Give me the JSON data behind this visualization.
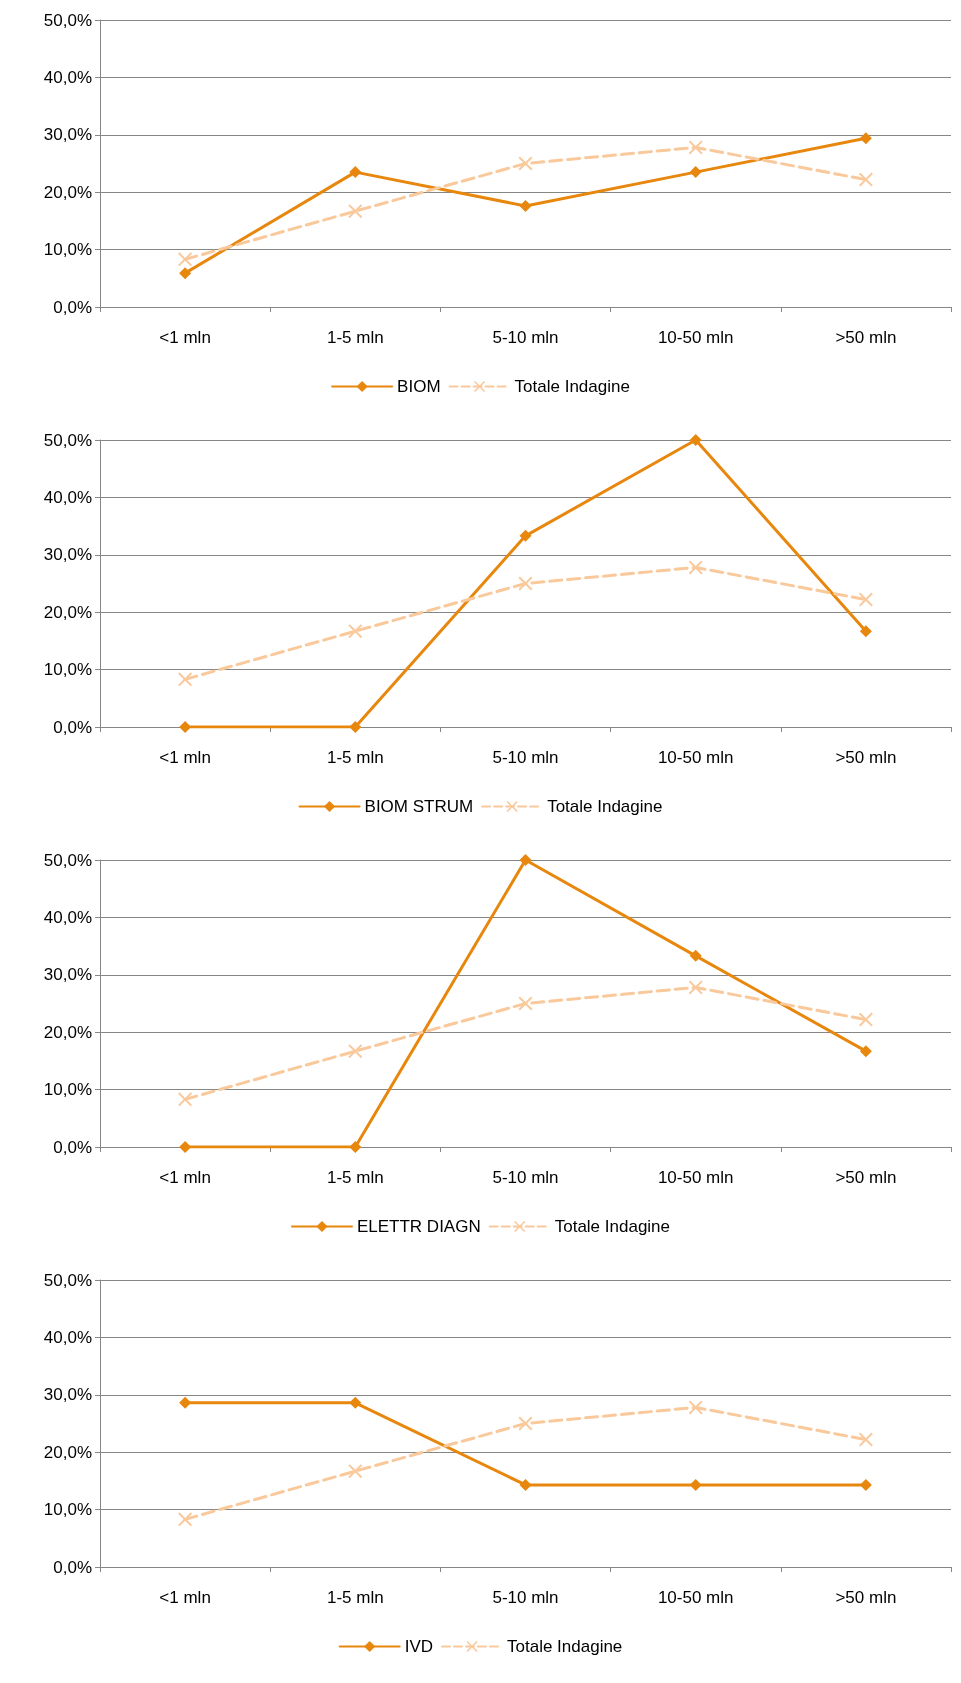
{
  "chart_data": [
    {
      "type": "line",
      "categories": [
        "<1 mln",
        "1-5 mln",
        "5-10 mln",
        "10-50 mln",
        ">50 mln"
      ],
      "series": [
        {
          "name": "BIOM",
          "color": "#e8870e",
          "values": [
            5.9,
            23.5,
            17.6,
            23.5,
            29.4
          ],
          "marker": "diamond",
          "line_style": "solid"
        },
        {
          "name": "Totale Indagine",
          "color": "#f9c89b",
          "values": [
            8.3,
            16.7,
            25.0,
            27.8,
            22.2
          ],
          "marker": "cross",
          "line_style": "dashed"
        }
      ],
      "ylim": [
        0,
        50
      ],
      "yticks": [
        {
          "value": 0,
          "label": "0,0%"
        },
        {
          "value": 10,
          "label": "10,0%"
        },
        {
          "value": 20,
          "label": "20,0%"
        },
        {
          "value": 30,
          "label": "30,0%"
        },
        {
          "value": 40,
          "label": "40,0%"
        },
        {
          "value": 50,
          "label": "50,0%"
        }
      ],
      "grid": "y",
      "legend": "bottom"
    },
    {
      "type": "line",
      "categories": [
        "<1 mln",
        "1-5 mln",
        "5-10 mln",
        "10-50 mln",
        ">50 mln"
      ],
      "series": [
        {
          "name": "BIOM STRUM",
          "color": "#e8870e",
          "values": [
            0,
            0,
            33.3,
            50.0,
            16.7
          ],
          "marker": "diamond",
          "line_style": "solid"
        },
        {
          "name": "Totale Indagine",
          "color": "#f9c89b",
          "values": [
            8.3,
            16.7,
            25.0,
            27.8,
            22.2
          ],
          "marker": "cross",
          "line_style": "dashed"
        }
      ],
      "ylim": [
        0,
        50
      ],
      "yticks": [
        {
          "value": 0,
          "label": "0,0%"
        },
        {
          "value": 10,
          "label": "10,0%"
        },
        {
          "value": 20,
          "label": "20,0%"
        },
        {
          "value": 30,
          "label": "30,0%"
        },
        {
          "value": 40,
          "label": "40,0%"
        },
        {
          "value": 50,
          "label": "50,0%"
        }
      ],
      "grid": "y",
      "legend": "bottom"
    },
    {
      "type": "line",
      "categories": [
        "<1 mln",
        "1-5 mln",
        "5-10 mln",
        "10-50 mln",
        ">50 mln"
      ],
      "series": [
        {
          "name": "ELETTR DIAGN",
          "color": "#e8870e",
          "values": [
            0,
            0,
            50.0,
            33.3,
            16.7
          ],
          "marker": "diamond",
          "line_style": "solid"
        },
        {
          "name": "Totale Indagine",
          "color": "#f9c89b",
          "values": [
            8.3,
            16.7,
            25.0,
            27.8,
            22.2
          ],
          "marker": "cross",
          "line_style": "dashed"
        }
      ],
      "ylim": [
        0,
        50
      ],
      "yticks": [
        {
          "value": 0,
          "label": "0,0%"
        },
        {
          "value": 10,
          "label": "10,0%"
        },
        {
          "value": 20,
          "label": "20,0%"
        },
        {
          "value": 30,
          "label": "30,0%"
        },
        {
          "value": 40,
          "label": "40,0%"
        },
        {
          "value": 50,
          "label": "50,0%"
        }
      ],
      "grid": "y",
      "legend": "bottom"
    },
    {
      "type": "line",
      "categories": [
        "<1 mln",
        "1-5 mln",
        "5-10 mln",
        "10-50 mln",
        ">50 mln"
      ],
      "series": [
        {
          "name": "IVD",
          "color": "#e8870e",
          "values": [
            28.6,
            28.6,
            14.3,
            14.3,
            14.3
          ],
          "marker": "diamond",
          "line_style": "solid"
        },
        {
          "name": "Totale Indagine",
          "color": "#f9c89b",
          "values": [
            8.3,
            16.7,
            25.0,
            27.8,
            22.2
          ],
          "marker": "cross",
          "line_style": "dashed"
        }
      ],
      "ylim": [
        0,
        50
      ],
      "yticks": [
        {
          "value": 0,
          "label": "0,0%"
        },
        {
          "value": 10,
          "label": "10,0%"
        },
        {
          "value": 20,
          "label": "20,0%"
        },
        {
          "value": 30,
          "label": "30,0%"
        },
        {
          "value": 40,
          "label": "40,0%"
        },
        {
          "value": 50,
          "label": "50,0%"
        }
      ],
      "grid": "y",
      "legend": "bottom"
    }
  ]
}
